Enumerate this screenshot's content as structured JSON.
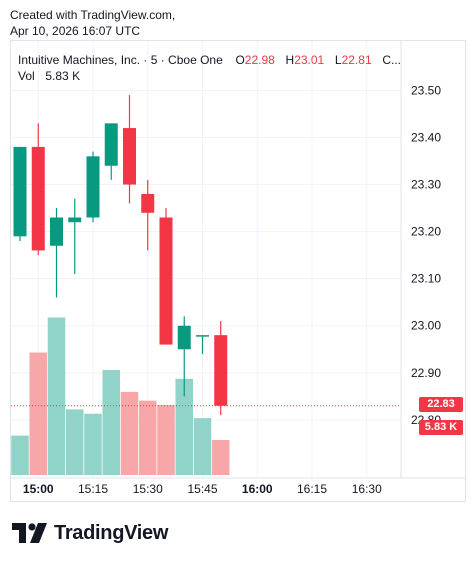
{
  "watermark": {
    "line1": "Created with TradingView.com,",
    "line2": "Apr 10, 2026 16:07 UTC"
  },
  "legend": {
    "symbol": "Intuitive Machines, Inc. · 5 · Cboe One",
    "o_label": "O",
    "o_value": "22.98",
    "h_label": "H",
    "h_value": "23.01",
    "l_label": "L",
    "l_value": "22.81",
    "c_label": "C...",
    "vol_label": "Vol",
    "vol_value": "5.83 K"
  },
  "price_tag": "22.83",
  "volume_tag": "5.83 K",
  "brand": "TradingView",
  "colors": {
    "up": "#089981",
    "down": "#f23645",
    "up_vol": "#8fd3c9",
    "down_vol": "#f7a7a7",
    "grid": "#f0f3fa"
  },
  "chart_data": {
    "type": "candlestick",
    "interval_minutes": 5,
    "y_ticks": [
      "23.50",
      "23.40",
      "23.30",
      "23.20",
      "23.10",
      "23.00",
      "22.90",
      "22.80"
    ],
    "x_ticks": [
      "15:00",
      "15:15",
      "15:30",
      "15:45",
      "16:00",
      "16:15",
      "16:30"
    ],
    "ylim": [
      22.77,
      23.52
    ],
    "last_price": 22.83,
    "candles": [
      {
        "time": "14:55",
        "open": 23.19,
        "high": 23.38,
        "low": 23.18,
        "close": 23.38
      },
      {
        "time": "15:00",
        "open": 23.38,
        "high": 23.43,
        "low": 23.15,
        "close": 23.16
      },
      {
        "time": "15:05",
        "open": 23.17,
        "high": 23.25,
        "low": 23.06,
        "close": 23.23
      },
      {
        "time": "15:10",
        "open": 23.22,
        "high": 23.27,
        "low": 23.11,
        "close": 23.23
      },
      {
        "time": "15:15",
        "open": 23.23,
        "high": 23.37,
        "low": 23.22,
        "close": 23.36
      },
      {
        "time": "15:20",
        "open": 23.34,
        "high": 23.43,
        "low": 23.31,
        "close": 23.43
      },
      {
        "time": "15:25",
        "open": 23.42,
        "high": 23.49,
        "low": 23.26,
        "close": 23.3
      },
      {
        "time": "15:30",
        "open": 23.28,
        "high": 23.31,
        "low": 23.16,
        "close": 23.24
      },
      {
        "time": "15:35",
        "open": 23.23,
        "high": 23.25,
        "low": 22.96,
        "close": 22.96
      },
      {
        "time": "15:40",
        "open": 22.95,
        "high": 23.02,
        "low": 22.85,
        "close": 23.0
      },
      {
        "time": "15:45",
        "open": 22.98,
        "high": 22.98,
        "low": 22.94,
        "close": 22.98
      },
      {
        "time": "15:50",
        "open": 22.98,
        "high": 23.01,
        "low": 22.81,
        "close": 22.83
      }
    ],
    "volume": [
      {
        "time": "14:55",
        "value": 0.45,
        "dir": "up"
      },
      {
        "time": "15:00",
        "value": 1.4,
        "dir": "down"
      },
      {
        "time": "15:05",
        "value": 1.8,
        "dir": "up"
      },
      {
        "time": "15:10",
        "value": 0.75,
        "dir": "up"
      },
      {
        "time": "15:15",
        "value": 0.7,
        "dir": "up"
      },
      {
        "time": "15:20",
        "value": 1.2,
        "dir": "up"
      },
      {
        "time": "15:25",
        "value": 0.95,
        "dir": "down"
      },
      {
        "time": "15:30",
        "value": 0.85,
        "dir": "down"
      },
      {
        "time": "15:35",
        "value": 0.8,
        "dir": "down"
      },
      {
        "time": "15:40",
        "value": 1.1,
        "dir": "up"
      },
      {
        "time": "15:45",
        "value": 0.65,
        "dir": "up"
      },
      {
        "time": "15:50",
        "value": 0.4,
        "dir": "down"
      }
    ],
    "volume_max": 5.83
  }
}
